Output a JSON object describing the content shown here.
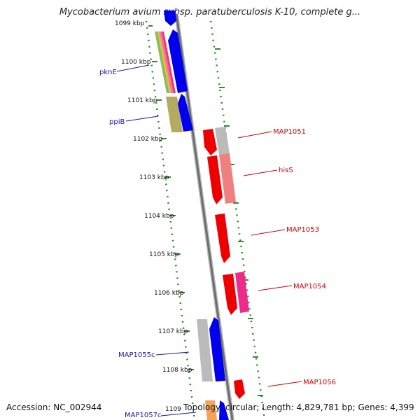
{
  "title": "Mycobacterium avium subsp. paratuberculosis K-10, complete g...",
  "footer": {
    "accession": "Accession: NC_002944",
    "topology": "Topology: circular; Length: 4,829,781 bp; Genes: 4,399"
  },
  "ruler": [
    "1099 kbp",
    "1100 kbp",
    "1101 kbp",
    "1102 kbp",
    "1103 kbp",
    "1104 kbp",
    "1105 kbp",
    "1106 kbp",
    "1107 kbp",
    "1108 kbp",
    "1109"
  ],
  "genes_left": [
    "pknE",
    "ppiB",
    "MAP1055c",
    "MAP1057c"
  ],
  "genes_right": [
    "MAP1051",
    "hisS",
    "MAP1053",
    "MAP1054",
    "MAP1056"
  ],
  "colors": {
    "forward_strand": "#ff0000",
    "reverse_strand": "#0000ee",
    "backbone": "#777777",
    "tick_green": "#2e8b2e",
    "left_label": "#1a1aa0",
    "right_label": "#cc0000"
  }
}
